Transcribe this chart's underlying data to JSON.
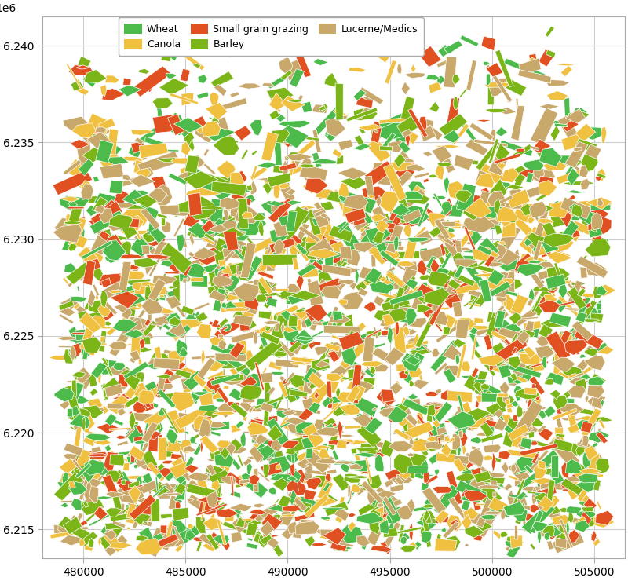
{
  "xlim": [
    478000,
    506500
  ],
  "ylim": [
    6213500,
    6241500
  ],
  "xticks": [
    480000,
    485000,
    490000,
    495000,
    500000,
    505000
  ],
  "yticks": [
    6215000,
    6220000,
    6225000,
    6230000,
    6235000,
    6240000
  ],
  "ytick_labels": [
    "6.215",
    "6.220",
    "6.225",
    "6.230",
    "6.235",
    "6.240"
  ],
  "crop_types": [
    "Wheat",
    "Barley",
    "Canola",
    "Lucerne/Medics",
    "Small grain grazing"
  ],
  "crop_colors": {
    "Wheat": "#4CBB4C",
    "Barley": "#7CB518",
    "Canola": "#F0C040",
    "Lucerne/Medics": "#C8A86B",
    "Small grain grazing": "#E05020"
  },
  "crop_weights": [
    0.22,
    0.2,
    0.18,
    0.28,
    0.12
  ],
  "legend_order": [
    "Wheat",
    "Canola",
    "Small grain grazing",
    "Barley",
    "Lucerne/Medics"
  ],
  "figsize": [
    8.0,
    7.4
  ],
  "dpi": 100,
  "background_color": "#ffffff",
  "grid_color": "#cccccc",
  "map_xmin": 479000,
  "map_xmax": 505500,
  "map_ymin": 6214000,
  "map_ymax": 6241000,
  "seed": 123
}
